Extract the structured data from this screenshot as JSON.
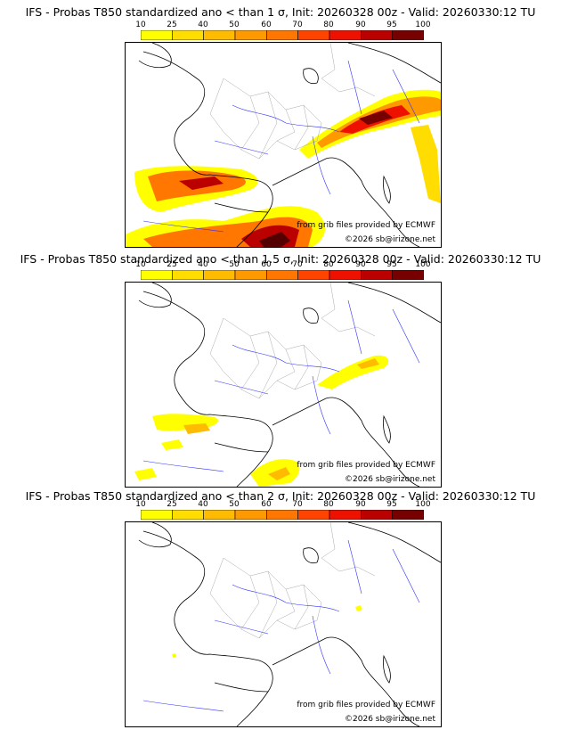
{
  "panels": [
    {
      "title": "IFS - Probas T850  standardized ano < than 1 σ, Init: 20260328 00z - Valid: 20260330:12 TU"
    },
    {
      "title": "IFS - Probas T850  standardized ano < than 1.5 σ, Init: 20260328 00z - Valid: 20260330:12 TU"
    },
    {
      "title": "IFS - Probas T850  standardized ano < than 2 σ, Init: 20260328 00z - Valid: 20260330:12 TU"
    }
  ],
  "legend": {
    "values": [
      "10",
      "25",
      "40",
      "50",
      "60",
      "70",
      "80",
      "90",
      "95",
      "100"
    ],
    "colors": [
      "#ffff00",
      "#ffdd00",
      "#ffbb00",
      "#ff9900",
      "#ff7700",
      "#ff4400",
      "#ee1100",
      "#bb0000",
      "#770000"
    ]
  },
  "credits": {
    "source": "from grib files provided by ECMWF",
    "copyright": "©2026 sb@irizone.net"
  }
}
